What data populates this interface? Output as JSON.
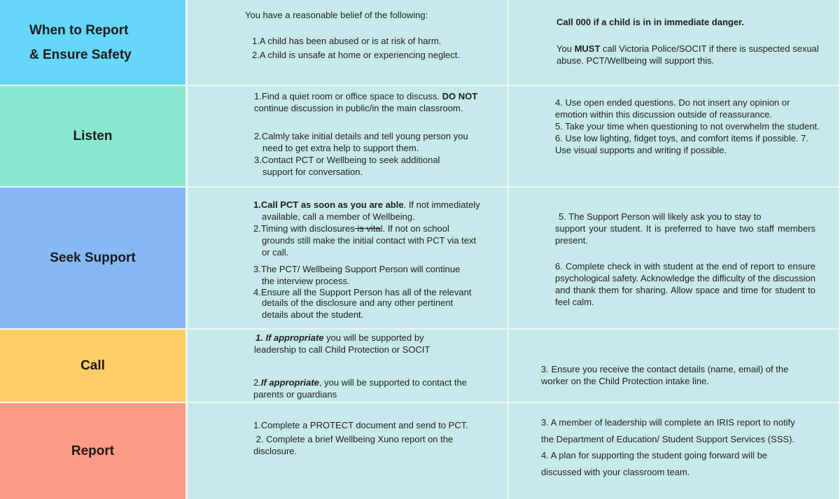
{
  "colors": {
    "when": "#66d7fb",
    "listen": "#8ae7cf",
    "seek": "#87b7f4",
    "call": "#fecd64",
    "report": "#fd9a88",
    "content": "#c8e9eb"
  },
  "rows": [
    {
      "heading_line1": "When to Report",
      "heading_line2": "& Ensure Safety",
      "mid": {
        "intro": "You have a reasonable belief of the following:",
        "i1": "1.A child has been abused or is at risk of harm.",
        "i2": "2.A child is unsafe at home or experiencing neglect."
      },
      "right": {
        "r1": "Call 000 if a child is in in immediate danger.",
        "r2_pre": "You ",
        "r2_bold": "MUST",
        "r2_post": " call Victoria Police/SOCIT if there is suspected sexual abuse. PCT/Wellbeing will support this."
      }
    },
    {
      "heading": "Listen",
      "mid": {
        "i1_pre": "1.Find a quiet room or office space to discuss. ",
        "i1_bold": "DO NOT",
        "i1_post": "continue discussion in public/in the main classroom.",
        "i2a": "2.Calmly take initial details and tell young person you",
        "i2b": "need to get extra help to support them.",
        "i3a": "3.Contact PCT or Wellbeing to seek additional",
        "i3b": "support for conversation."
      },
      "right": {
        "r1": "4. Use open ended questions. Do not insert any opinion or emotion within this discussion outside of reassurance.",
        "r2": "5. Take your time when questioning to not overwhelm the student.",
        "r3": "6. Use low lighting, fidget toys, and comfort items if possible. 7. Use visual supports and writing if possible."
      }
    },
    {
      "heading": "Seek Support",
      "mid": {
        "i1_bold": "1.Call PCT as soon as you are able",
        "i1_post": ". If not immediately",
        "i1b": "available, call a member of Wellbeing.",
        "i2_pre": "2.Timing with disclosures",
        "i2_strike": " is vita",
        "i2_post": "l. If not on school",
        "i2b": "grounds still make the initial contact with PCT via text",
        "i2c": "or call.",
        "i3a": "3.The PCT/ Wellbeing Support Person will continue",
        "i3b": "the interview process.",
        "i4a": "4.Ensure all the Support Person has all of the relevant",
        "i4b": "details of the disclosure and any other pertinent",
        "i4c": "details about the student."
      },
      "right": {
        "r1a": "5. The Support Person will likely ask you to stay to",
        "r1b": "support your student. It is preferred to have two staff members present.",
        "r2": "6. Complete check in with student at the end of report to ensure psychological safety. Acknowledge the difficulty of the discussion and thank them for sharing. Allow space and time for student to feel calm."
      }
    },
    {
      "heading": "Call",
      "mid": {
        "i1_bold": "1. If appropriate",
        "i1_post": " you  will be supported by",
        "i1b": "leadership to call Child Protection or SOCIT",
        "i2_pre": "2.",
        "i2_bold": "If appropriate",
        "i2_post": ", you will be supported to contact the parents or guardians"
      },
      "right": {
        "r1": "3. Ensure you receive the contact details (name, email) of the worker on the Child Protection intake line."
      }
    },
    {
      "heading": "Report",
      "mid": {
        "i1": "1.Complete a PROTECT document and send to PCT.",
        "i2": " 2. Complete a brief Wellbeing Xuno report on the disclosure."
      },
      "right": {
        "r1": "3. A member of leadership will complete an IRIS report to notify the Department of Education/ Student Support Services (SSS).",
        "r2": "4. A plan for supporting the student going forward will be discussed with your classroom team."
      }
    }
  ]
}
